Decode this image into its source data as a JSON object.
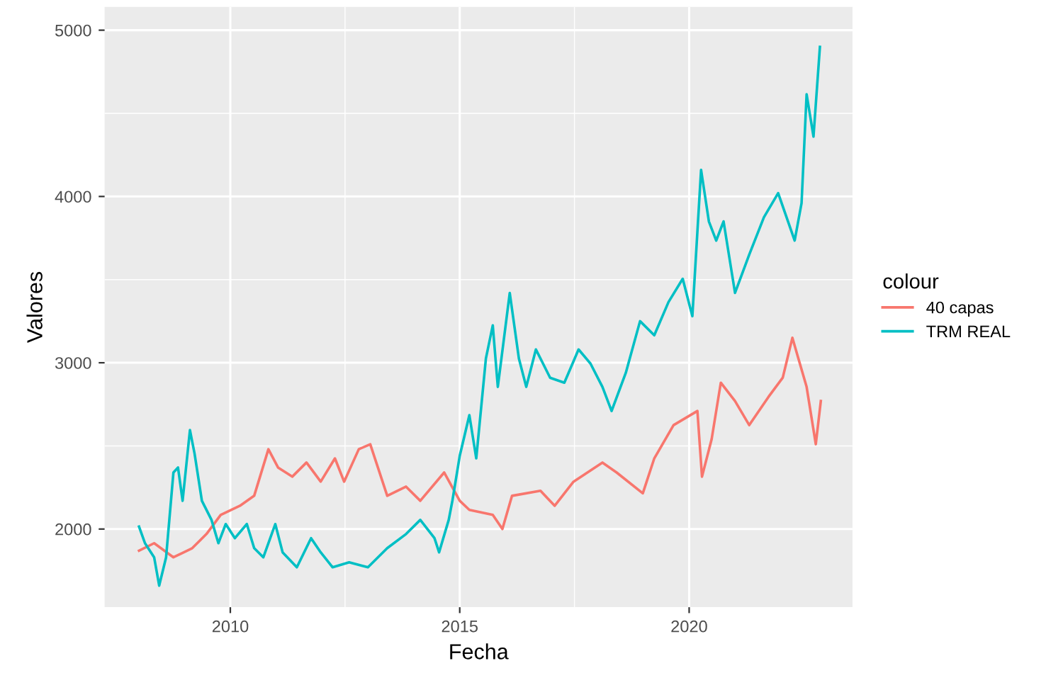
{
  "chart_data": {
    "type": "line",
    "xlabel": "Fecha",
    "ylabel": "Valores",
    "legend_title": "colour",
    "legend": "right",
    "grid": true,
    "xlim": [
      2007.26,
      2023.56
    ],
    "xticks": [
      2010,
      2015,
      2020
    ],
    "ylim": [
      1530,
      5140
    ],
    "yticks": [
      2000,
      3000,
      4000,
      5000
    ],
    "series": [
      {
        "name": "40 capas",
        "color": "#f8766d",
        "x": [
          2008.01,
          2008.34,
          2008.76,
          2009.17,
          2009.48,
          2009.79,
          2010.21,
          2010.52,
          2010.83,
          2011.04,
          2011.35,
          2011.66,
          2011.97,
          2012.28,
          2012.48,
          2012.8,
          2013.05,
          2013.42,
          2013.83,
          2014.14,
          2014.66,
          2015.0,
          2015.21,
          2015.72,
          2015.93,
          2016.14,
          2016.76,
          2017.07,
          2017.48,
          2018.11,
          2018.42,
          2018.99,
          2019.24,
          2019.66,
          2020.18,
          2020.28,
          2020.49,
          2020.69,
          2021.0,
          2021.31,
          2021.73,
          2022.04,
          2022.25,
          2022.56,
          2022.76,
          2022.87
        ],
        "values": [
          1870,
          1915,
          1830,
          1885,
          1970,
          2085,
          2140,
          2200,
          2480,
          2370,
          2315,
          2400,
          2285,
          2425,
          2285,
          2480,
          2510,
          2200,
          2255,
          2170,
          2340,
          2170,
          2115,
          2085,
          2000,
          2200,
          2230,
          2140,
          2285,
          2400,
          2340,
          2215,
          2425,
          2625,
          2710,
          2315,
          2540,
          2880,
          2770,
          2625,
          2795,
          2910,
          3150,
          2855,
          2510,
          2770
        ]
      },
      {
        "name": "TRM REAL",
        "color": "#00bfc4",
        "x": [
          2008.01,
          2008.14,
          2008.34,
          2008.45,
          2008.6,
          2008.76,
          2008.86,
          2008.96,
          2009.12,
          2009.22,
          2009.38,
          2009.59,
          2009.74,
          2009.9,
          2010.1,
          2010.36,
          2010.52,
          2010.72,
          2010.98,
          2011.14,
          2011.45,
          2011.76,
          2011.97,
          2012.23,
          2012.59,
          2013.0,
          2013.42,
          2013.83,
          2014.14,
          2014.45,
          2014.55,
          2014.76,
          2014.84,
          2015.0,
          2015.21,
          2015.36,
          2015.57,
          2015.72,
          2015.83,
          2016.09,
          2016.29,
          2016.45,
          2016.66,
          2016.97,
          2017.28,
          2017.59,
          2017.85,
          2018.11,
          2018.31,
          2018.62,
          2018.93,
          2019.24,
          2019.55,
          2019.86,
          2020.07,
          2020.26,
          2020.43,
          2020.59,
          2020.75,
          2021.0,
          2021.31,
          2021.63,
          2021.94,
          2022.3,
          2022.45,
          2022.56,
          2022.71,
          2022.85
        ],
        "values": [
          2015,
          1915,
          1830,
          1660,
          1830,
          2340,
          2370,
          2170,
          2595,
          2455,
          2170,
          2055,
          1915,
          2030,
          1945,
          2030,
          1885,
          1830,
          2030,
          1860,
          1770,
          1945,
          1860,
          1770,
          1800,
          1770,
          1885,
          1970,
          2055,
          1945,
          1860,
          2055,
          2170,
          2440,
          2685,
          2425,
          3025,
          3225,
          2855,
          3420,
          3025,
          2855,
          3080,
          2910,
          2880,
          3080,
          2995,
          2855,
          2710,
          2940,
          3250,
          3165,
          3365,
          3505,
          3280,
          4160,
          3850,
          3735,
          3850,
          3420,
          3650,
          3875,
          4020,
          3735,
          3960,
          4615,
          4360,
          4900
        ]
      }
    ]
  }
}
